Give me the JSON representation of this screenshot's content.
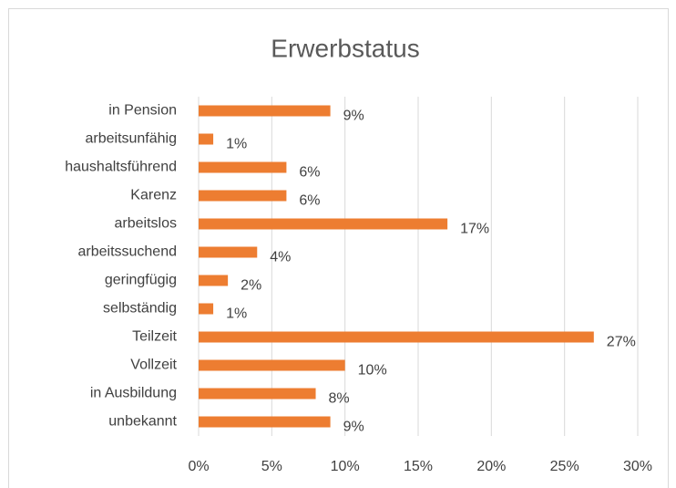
{
  "chart_data": {
    "type": "bar",
    "orientation": "horizontal",
    "title": "Erwerbstatus",
    "categories": [
      "in Pension",
      "arbeitsunfähig",
      "haushaltsführend",
      "Karenz",
      "arbeitslos",
      "arbeitssuchend",
      "geringfügig",
      "selbständig",
      "Teilzeit",
      "Vollzeit",
      "in Ausbildung",
      "unbekannt"
    ],
    "values": [
      9,
      1,
      6,
      6,
      17,
      4,
      2,
      1,
      27,
      10,
      8,
      9
    ],
    "value_labels": [
      "9%",
      "1%",
      "6%",
      "6%",
      "17%",
      "4%",
      "2%",
      "1%",
      "27%",
      "10%",
      "8%",
      "9%"
    ],
    "color": "#ed7d31",
    "xlim": [
      0,
      30
    ],
    "xticks": [
      {
        "value": 0,
        "label": "0%"
      },
      {
        "value": 5,
        "label": "5%"
      },
      {
        "value": 10,
        "label": "10%"
      },
      {
        "value": 15,
        "label": "15%"
      },
      {
        "value": 20,
        "label": "20%"
      },
      {
        "value": 25,
        "label": "25%"
      },
      {
        "value": 30,
        "label": "30%"
      }
    ],
    "grid": true
  }
}
